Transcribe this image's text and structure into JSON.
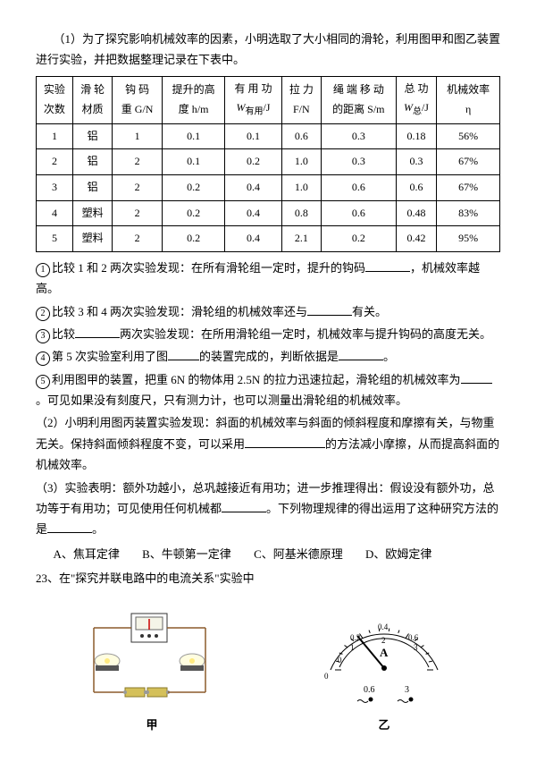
{
  "intro": "（1）为了探究影响机械效率的因素，小明选取了大小相同的滑轮，利用图甲和图乙装置进行实验，并把数据整理记录在下表中。",
  "table": {
    "headers": [
      "实验\n次数",
      "滑 轮\n材质",
      "钩 码\n重 G/N",
      "提升的高\n度 h/m",
      "有 用 功\nW有用/J",
      "拉 力\nF/N",
      "绳 端 移 动\n的距离 S/m",
      "总  功\nW总/J",
      "机械效率\nη"
    ],
    "rows": [
      [
        "1",
        "铝",
        "1",
        "0.1",
        "0.1",
        "0.6",
        "0.3",
        "0.18",
        "56%"
      ],
      [
        "2",
        "铝",
        "2",
        "0.1",
        "0.2",
        "1.0",
        "0.3",
        "0.3",
        "67%"
      ],
      [
        "3",
        "铝",
        "2",
        "0.2",
        "0.4",
        "1.0",
        "0.6",
        "0.6",
        "67%"
      ],
      [
        "4",
        "塑料",
        "2",
        "0.2",
        "0.4",
        "0.8",
        "0.6",
        "0.48",
        "83%"
      ],
      [
        "5",
        "塑料",
        "2",
        "0.2",
        "0.4",
        "2.1",
        "0.2",
        "0.42",
        "95%"
      ]
    ]
  },
  "q1a": "比较 1 和 2 两次实验发现：在所有滑轮组一定时，提升的钩码",
  "q1b": "，机械效率越高。",
  "q2a": "比较 3 和 4 两次实验发现：滑轮组的机械效率还与",
  "q2b": "有关。",
  "q3a": "比较",
  "q3b": "两次实验发现：在所用滑轮组一定时，机械效率与提升钩码的高度无关。",
  "q4a": "第 5 次实验室利用了图",
  "q4b": "的装置完成的，判断依据是",
  "q4c": "。",
  "q5a": "利用图甲的装置，把重 6N 的物体用 2.5N 的拉力迅速拉起，滑轮组的机械效率为",
  "q5b": "。可见如果没有刻度尺，只有测力计，也可以测量出滑轮组的机械效率。",
  "p2a": "（2）小明利用图丙装置实验发现：斜面的机械效率与斜面的倾斜程度和摩擦有关，与物重无关。保持斜面倾斜程度不变，可以采用",
  "p2b": "的方法减小摩擦，从而提高斜面的机械效率。",
  "p3a": "（3）实验表明：额外功越小，总巩越接近有用功；进一步推理得出：假设没有额外功，总功等于有用功；可见使用任何机械都",
  "p3b": "。下列物理规律的得出运用了这种研究方法的是",
  "p3c": "。",
  "optA": "A、焦耳定律",
  "optB": "B、牛顿第一定律",
  "optC": "C、阿基米德原理",
  "optD": "D、欧姆定律",
  "q23": "23、在\"探究并联电路中的电流关系\"实验中",
  "labJ": "甲",
  "labY": "乙",
  "meter": {
    "ticks": [
      "0",
      "0.2",
      "0.4",
      "0.6"
    ],
    "ticks2": [
      "0",
      "1",
      "2",
      "3"
    ],
    "unit": "A",
    "sw": [
      "0.6",
      "3"
    ]
  }
}
